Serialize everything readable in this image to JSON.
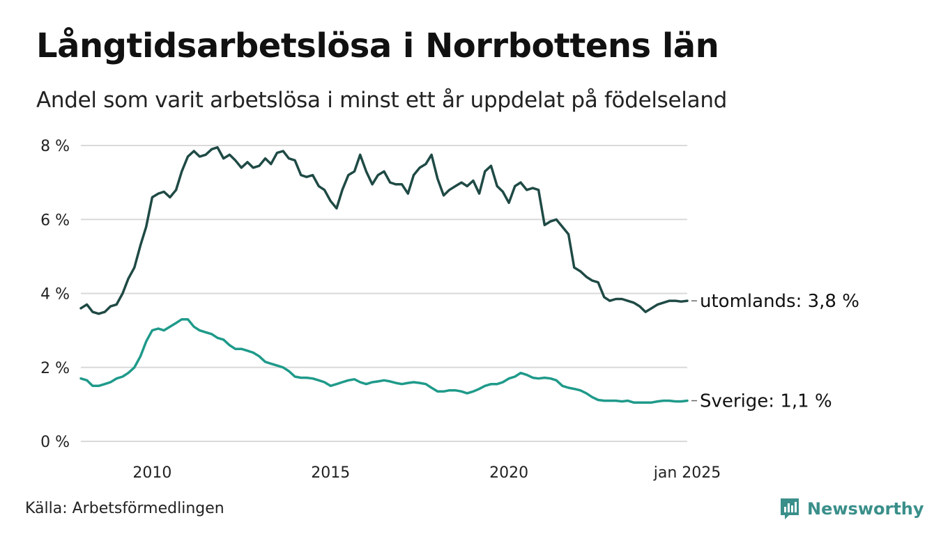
{
  "title": "Långtidsarbetslösa i Norrbottens län",
  "subtitle": "Andel som varit arbetslösa i minst ett år uppdelat på födelseland",
  "source": "Källa: Arbetsförmedlingen",
  "brand": "Newsworthy",
  "colors": {
    "utomlands": "#1f4a45",
    "sverige": "#1f9a8a",
    "grid": "#d9d9d9",
    "brand": "#3a8f8a"
  },
  "chart_data": {
    "type": "line",
    "title": "Långtidsarbetslösa i Norrbottens län",
    "xlabel": "",
    "ylabel": "",
    "xlim": [
      2008.0,
      2025.0
    ],
    "ylim": [
      0,
      8
    ],
    "yticks": [
      0,
      2,
      4,
      6,
      8
    ],
    "ytick_labels": [
      "0 %",
      "2 %",
      "4 %",
      "6 %",
      "8 %"
    ],
    "xticks": [
      2010,
      2015,
      2020,
      2025.0
    ],
    "xtick_labels": [
      "2010",
      "2015",
      "2020",
      "jan 2025"
    ],
    "series": [
      {
        "name": "utomlands",
        "end_label": "utomlands: 3,8 %",
        "x": [
          2008.0,
          2008.17,
          2008.33,
          2008.5,
          2008.67,
          2008.83,
          2009.0,
          2009.17,
          2009.33,
          2009.5,
          2009.67,
          2009.83,
          2010.0,
          2010.17,
          2010.33,
          2010.5,
          2010.67,
          2010.83,
          2011.0,
          2011.17,
          2011.33,
          2011.5,
          2011.67,
          2011.83,
          2012.0,
          2012.17,
          2012.33,
          2012.5,
          2012.67,
          2012.83,
          2013.0,
          2013.17,
          2013.33,
          2013.5,
          2013.67,
          2013.83,
          2014.0,
          2014.17,
          2014.33,
          2014.5,
          2014.67,
          2014.83,
          2015.0,
          2015.17,
          2015.33,
          2015.5,
          2015.67,
          2015.83,
          2016.0,
          2016.17,
          2016.33,
          2016.5,
          2016.67,
          2016.83,
          2017.0,
          2017.17,
          2017.33,
          2017.5,
          2017.67,
          2017.83,
          2018.0,
          2018.17,
          2018.33,
          2018.5,
          2018.67,
          2018.83,
          2019.0,
          2019.17,
          2019.33,
          2019.5,
          2019.67,
          2019.83,
          2020.0,
          2020.17,
          2020.33,
          2020.5,
          2020.67,
          2020.83,
          2021.0,
          2021.17,
          2021.33,
          2021.5,
          2021.67,
          2021.83,
          2022.0,
          2022.17,
          2022.33,
          2022.5,
          2022.67,
          2022.83,
          2023.0,
          2023.17,
          2023.33,
          2023.5,
          2023.67,
          2023.83,
          2024.0,
          2024.17,
          2024.33,
          2024.5,
          2024.67,
          2024.83,
          2025.0
        ],
        "values": [
          3.6,
          3.7,
          3.5,
          3.45,
          3.5,
          3.65,
          3.7,
          4.0,
          4.4,
          4.7,
          5.3,
          5.8,
          6.6,
          6.7,
          6.75,
          6.6,
          6.8,
          7.3,
          7.7,
          7.85,
          7.7,
          7.75,
          7.9,
          7.95,
          7.65,
          7.75,
          7.6,
          7.4,
          7.55,
          7.4,
          7.45,
          7.65,
          7.5,
          7.8,
          7.85,
          7.65,
          7.6,
          7.2,
          7.15,
          7.2,
          6.9,
          6.8,
          6.5,
          6.3,
          6.8,
          7.2,
          7.3,
          7.75,
          7.3,
          6.95,
          7.2,
          7.3,
          7.0,
          6.95,
          6.95,
          6.7,
          7.2,
          7.4,
          7.5,
          7.75,
          7.1,
          6.65,
          6.8,
          6.9,
          7.0,
          6.9,
          7.05,
          6.7,
          7.3,
          7.45,
          6.9,
          6.75,
          6.45,
          6.9,
          7.0,
          6.8,
          6.85,
          6.8,
          5.85,
          5.95,
          6.0,
          5.8,
          5.6,
          4.7,
          4.6,
          4.45,
          4.35,
          4.3,
          3.9,
          3.8,
          3.85,
          3.85,
          3.8,
          3.75,
          3.65,
          3.5,
          3.6,
          3.7,
          3.75,
          3.8,
          3.8,
          3.78,
          3.8
        ]
      },
      {
        "name": "Sverige",
        "end_label": "Sverige: 1,1 %",
        "x": [
          2008.0,
          2008.17,
          2008.33,
          2008.5,
          2008.67,
          2008.83,
          2009.0,
          2009.17,
          2009.33,
          2009.5,
          2009.67,
          2009.83,
          2010.0,
          2010.17,
          2010.33,
          2010.5,
          2010.67,
          2010.83,
          2011.0,
          2011.17,
          2011.33,
          2011.5,
          2011.67,
          2011.83,
          2012.0,
          2012.17,
          2012.33,
          2012.5,
          2012.67,
          2012.83,
          2013.0,
          2013.17,
          2013.33,
          2013.5,
          2013.67,
          2013.83,
          2014.0,
          2014.17,
          2014.33,
          2014.5,
          2014.67,
          2014.83,
          2015.0,
          2015.17,
          2015.33,
          2015.5,
          2015.67,
          2015.83,
          2016.0,
          2016.17,
          2016.33,
          2016.5,
          2016.67,
          2016.83,
          2017.0,
          2017.17,
          2017.33,
          2017.5,
          2017.67,
          2017.83,
          2018.0,
          2018.17,
          2018.33,
          2018.5,
          2018.67,
          2018.83,
          2019.0,
          2019.17,
          2019.33,
          2019.5,
          2019.67,
          2019.83,
          2020.0,
          2020.17,
          2020.33,
          2020.5,
          2020.67,
          2020.83,
          2021.0,
          2021.17,
          2021.33,
          2021.5,
          2021.67,
          2021.83,
          2022.0,
          2022.17,
          2022.33,
          2022.5,
          2022.67,
          2022.83,
          2023.0,
          2023.17,
          2023.33,
          2023.5,
          2023.67,
          2023.83,
          2024.0,
          2024.17,
          2024.33,
          2024.5,
          2024.67,
          2024.83,
          2025.0
        ],
        "values": [
          1.7,
          1.65,
          1.5,
          1.5,
          1.55,
          1.6,
          1.7,
          1.75,
          1.85,
          2.0,
          2.3,
          2.7,
          3.0,
          3.05,
          3.0,
          3.1,
          3.2,
          3.3,
          3.3,
          3.1,
          3.0,
          2.95,
          2.9,
          2.8,
          2.75,
          2.6,
          2.5,
          2.5,
          2.45,
          2.4,
          2.3,
          2.15,
          2.1,
          2.05,
          2.0,
          1.9,
          1.75,
          1.72,
          1.72,
          1.7,
          1.65,
          1.6,
          1.5,
          1.55,
          1.6,
          1.65,
          1.68,
          1.6,
          1.55,
          1.6,
          1.62,
          1.65,
          1.62,
          1.58,
          1.55,
          1.58,
          1.6,
          1.58,
          1.55,
          1.45,
          1.35,
          1.35,
          1.38,
          1.38,
          1.35,
          1.3,
          1.35,
          1.42,
          1.5,
          1.55,
          1.55,
          1.6,
          1.7,
          1.75,
          1.85,
          1.8,
          1.72,
          1.7,
          1.72,
          1.7,
          1.65,
          1.5,
          1.45,
          1.42,
          1.38,
          1.3,
          1.2,
          1.12,
          1.1,
          1.1,
          1.1,
          1.08,
          1.1,
          1.05,
          1.05,
          1.05,
          1.05,
          1.08,
          1.1,
          1.1,
          1.08,
          1.08,
          1.1
        ]
      }
    ]
  }
}
